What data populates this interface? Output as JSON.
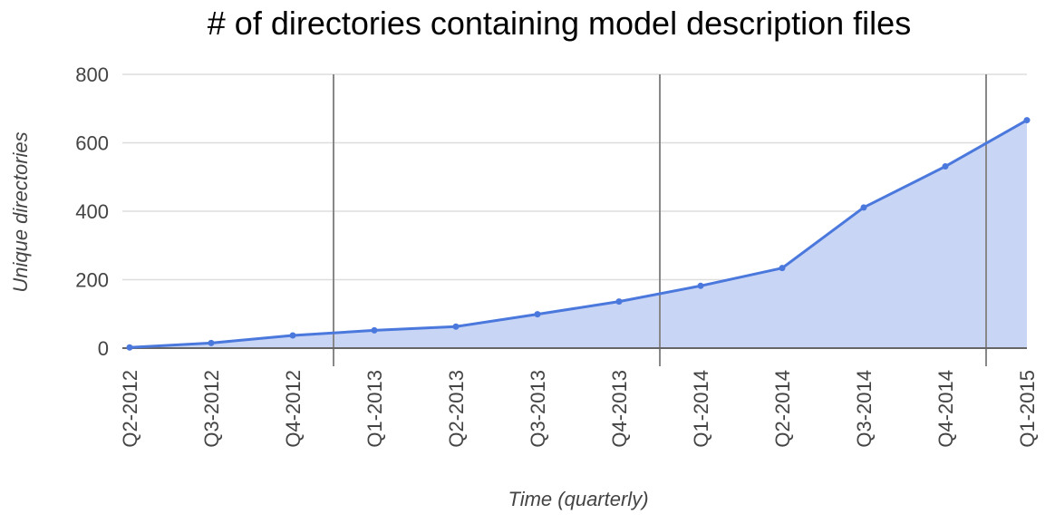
{
  "chart_data": {
    "type": "area",
    "title": "# of directories containing model description files",
    "xlabel": "Time (quarterly)",
    "ylabel": "Unique directories",
    "categories": [
      "Q2-2012",
      "Q3-2012",
      "Q4-2012",
      "Q1-2013",
      "Q2-2013",
      "Q3-2013",
      "Q4-2013",
      "Q1-2014",
      "Q2-2014",
      "Q3-2014",
      "Q4-2014",
      "Q1-2015"
    ],
    "series": [
      {
        "values": [
          2,
          15,
          37,
          52,
          63,
          99,
          136,
          182,
          234,
          411,
          531,
          666
        ]
      }
    ],
    "ylim": [
      0,
      800
    ],
    "yticks": [
      0,
      200,
      400,
      600,
      800
    ],
    "grid": true,
    "legend": "none",
    "vertical_markers_after": [
      "Q4-2012",
      "Q4-2013",
      "Q4-2014"
    ],
    "colors": {
      "line": "#4a78dc",
      "fill": "#c9d5f5",
      "grid": "#dddddd",
      "marker_line": "#888888",
      "baseline": "#666666"
    }
  }
}
